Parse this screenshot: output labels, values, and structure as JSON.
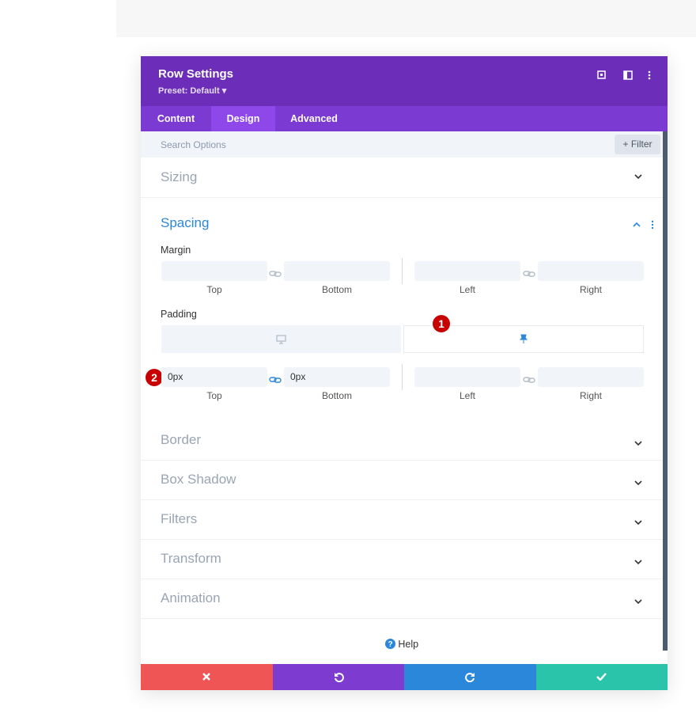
{
  "header": {
    "title": "Row Settings",
    "preset": "Preset: Default"
  },
  "tabs": [
    "Content",
    "Design",
    "Advanced"
  ],
  "search": {
    "placeholder": "Search Options",
    "filter": "Filter"
  },
  "sizing": "Sizing",
  "spacing": {
    "title": "Spacing",
    "margin": {
      "label": "Margin",
      "fields": [
        "Top",
        "Bottom",
        "Left",
        "Right"
      ]
    },
    "padding": {
      "label": "Padding",
      "values": [
        "0px",
        "0px"
      ],
      "fields": [
        "Top",
        "Bottom",
        "Left",
        "Right"
      ]
    }
  },
  "badges": [
    "1",
    "2"
  ],
  "sections": [
    "Border",
    "Box Shadow",
    "Filters",
    "Transform",
    "Animation"
  ],
  "help": "Help"
}
